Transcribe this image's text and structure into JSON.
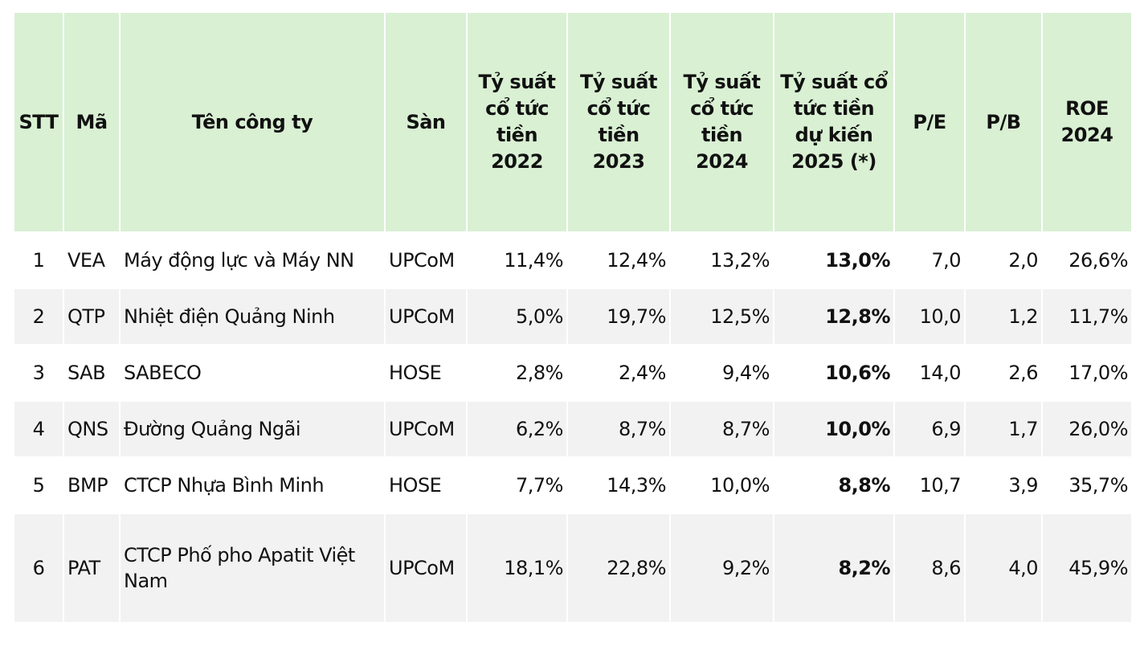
{
  "table": {
    "headers": [
      "STT",
      "Mã",
      "Tên công ty",
      "Sàn",
      "Tỷ suất cổ tức tiền 2022",
      "Tỷ suất cổ tức tiền 2023",
      "Tỷ suất cổ tức tiền 2024",
      "Tỷ suất cổ tức tiền dự kiến 2025 (*)",
      "P/E",
      "P/B",
      "ROE 2024"
    ],
    "rows": [
      [
        "1",
        "VEA",
        "Máy động lực và Máy NN",
        "UPCoM",
        "11,4%",
        "12,4%",
        "13,2%",
        "13,0%",
        "7,0",
        "2,0",
        "26,6%"
      ],
      [
        "2",
        "QTP",
        "Nhiệt điện Quảng Ninh",
        "UPCoM",
        "5,0%",
        "19,7%",
        "12,5%",
        "12,8%",
        "10,0",
        "1,2",
        "11,7%"
      ],
      [
        "3",
        "SAB",
        "SABECO",
        "HOSE",
        "2,8%",
        "2,4%",
        "9,4%",
        "10,6%",
        "14,0",
        "2,6",
        "17,0%"
      ],
      [
        "4",
        "QNS",
        "Đường Quảng Ngãi",
        "UPCoM",
        "6,2%",
        "8,7%",
        "8,7%",
        "10,0%",
        "6,9",
        "1,7",
        "26,0%"
      ],
      [
        "5",
        "BMP",
        "CTCP Nhựa Bình Minh",
        "HOSE",
        "7,7%",
        "14,3%",
        "10,0%",
        "8,8%",
        "10,7",
        "3,9",
        "35,7%"
      ],
      [
        "6",
        "PAT",
        "CTCP Phố pho Apatit Việt Nam",
        "UPCoM",
        "18,1%",
        "22,8%",
        "9,2%",
        "8,2%",
        "8,6",
        "4,0",
        "45,9%"
      ]
    ]
  }
}
